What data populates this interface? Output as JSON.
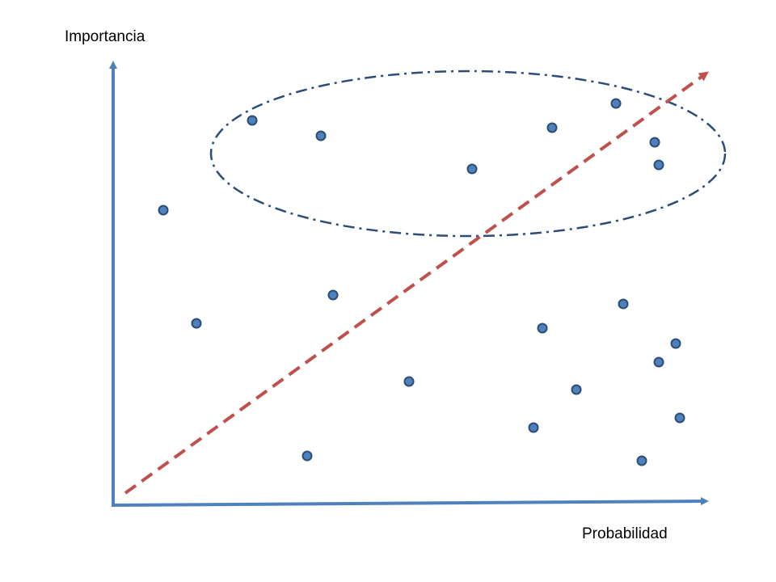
{
  "axes": {
    "y_label": "Importancia",
    "x_label": "Probabilidad"
  }
}
